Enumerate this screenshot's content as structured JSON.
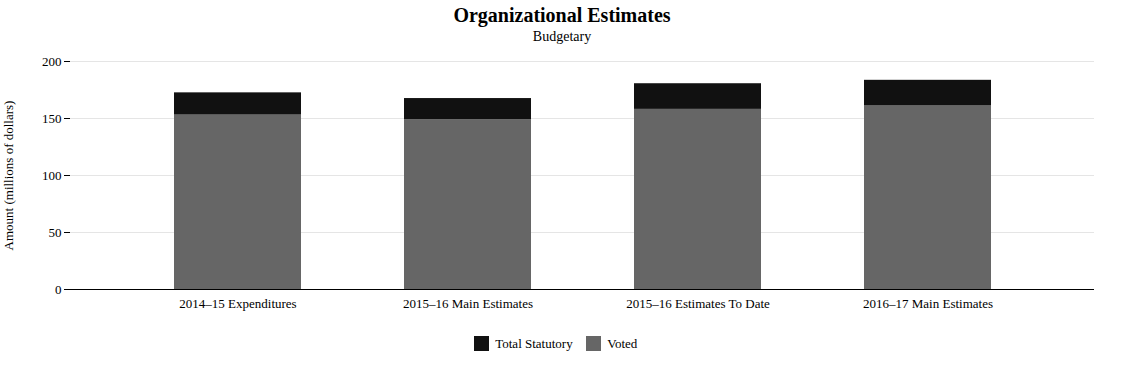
{
  "chart_data": {
    "type": "bar",
    "stacked": true,
    "title": "Organizational Estimates",
    "subtitle": "Budgetary",
    "categories": [
      "2014–15 Expenditures",
      "2015–16 Main Estimates",
      "2015–16 Estimates To Date",
      "2016–17 Main Estimates"
    ],
    "series": [
      {
        "name": "Voted",
        "color": "#666666",
        "values": [
          153.0,
          149.0,
          158.0,
          161.0
        ]
      },
      {
        "name": "Total Statutory",
        "color": "#111111",
        "values": [
          19.5,
          18.5,
          22.5,
          22.5
        ]
      }
    ],
    "ylabel": "Amount (millions of dollars)",
    "ylim": [
      0,
      200
    ],
    "yticks": [
      0,
      50,
      100,
      150,
      200
    ],
    "grid": true,
    "legend": "lower center"
  }
}
